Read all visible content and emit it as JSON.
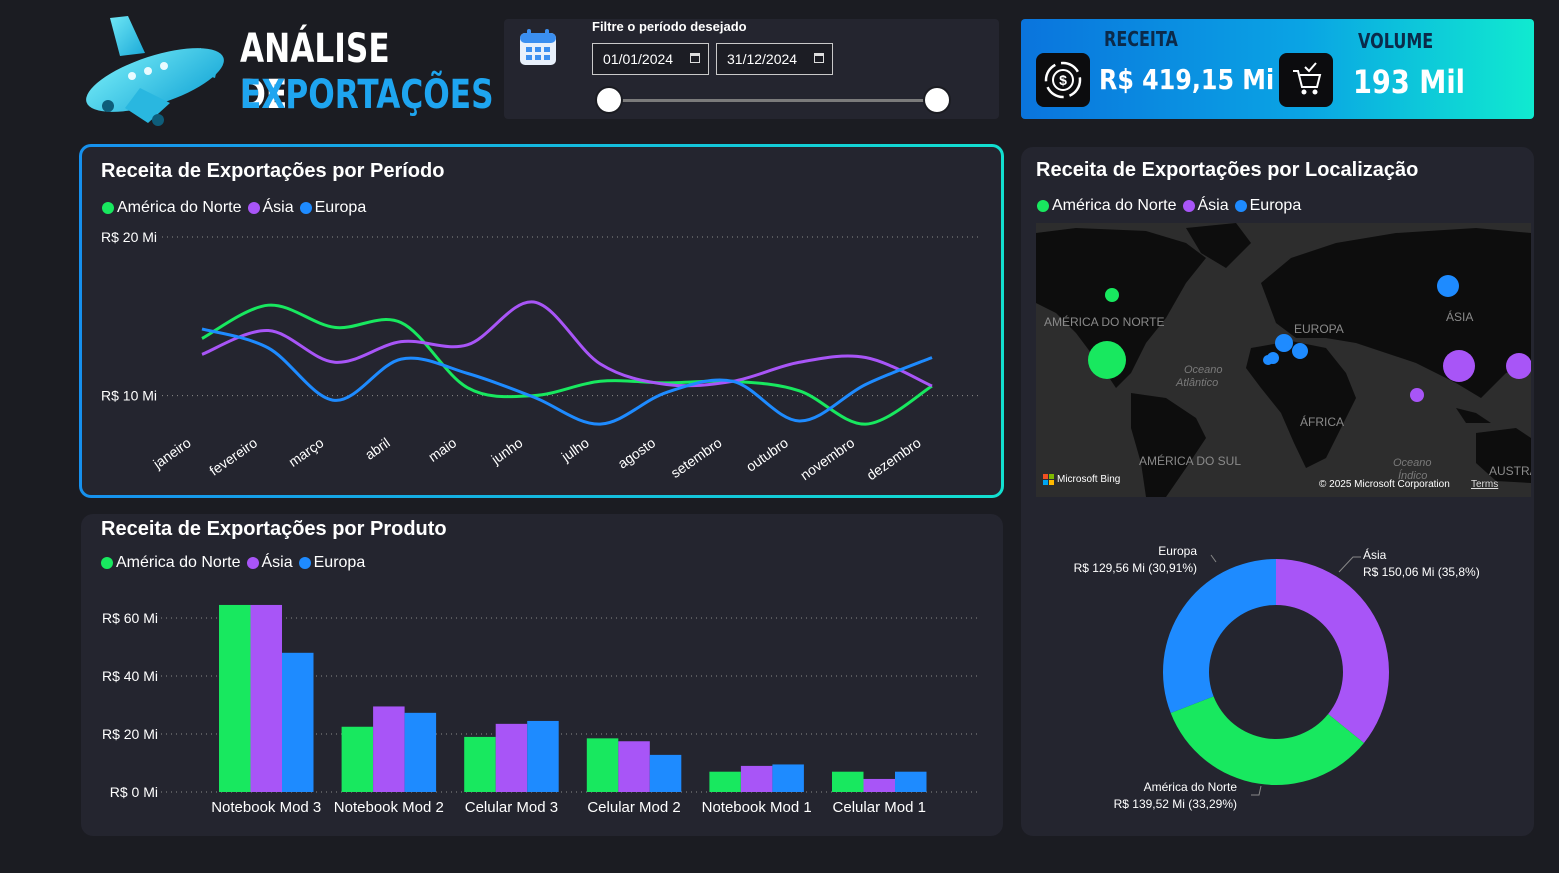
{
  "header": {
    "title_line1": "ANÁLISE DE",
    "title_line2": "EXPORTAÇÕES",
    "plane_icon": "airplane-icon"
  },
  "filter": {
    "label": "Filtre o período desejado",
    "start_date": "01/01/2024",
    "end_date": "31/12/2024",
    "calendar_icon": "calendar-icon",
    "slider_range": [
      0,
      1
    ]
  },
  "kpis": {
    "receita_label": "RECEITA",
    "receita_value": "R$ 419,15 Mi",
    "volume_label": "VOLUME",
    "volume_value": "193 Mil",
    "receita_icon": "money-cycle-icon",
    "volume_icon": "cart-check-icon"
  },
  "colors": {
    "america": "#18e85f",
    "asia": "#a855f7",
    "europa": "#1e8bff",
    "accent_start": "#0a78e0",
    "accent_end": "#10e8cf"
  },
  "legend": [
    {
      "name": "América do Norte",
      "color": "#18e85f"
    },
    {
      "name": "Ásia",
      "color": "#a855f7"
    },
    {
      "name": "Europa",
      "color": "#1e8bff"
    }
  ],
  "chart_data": [
    {
      "type": "line",
      "title": "Receita de Exportações por Período",
      "categories": [
        "janeiro",
        "fevereiro",
        "março",
        "abril",
        "maio",
        "junho",
        "julho",
        "agosto",
        "setembro",
        "outubro",
        "novembro",
        "dezembro"
      ],
      "ytick_labels": [
        "R$ 10 Mi",
        "R$ 20 Mi"
      ],
      "yticks": [
        10,
        20
      ],
      "ylim": [
        6,
        20
      ],
      "grid": true,
      "legend_position": "top-left",
      "series": [
        {
          "name": "América do Norte",
          "values": [
            13.6,
            15.7,
            14.3,
            14.6,
            10.5,
            10.0,
            10.9,
            10.8,
            10.9,
            10.3,
            8.2,
            10.6
          ]
        },
        {
          "name": "Ásia",
          "values": [
            12.6,
            14.1,
            12.1,
            13.4,
            13.2,
            15.9,
            12.0,
            10.7,
            10.9,
            12.1,
            12.4,
            10.6
          ]
        },
        {
          "name": "Europa",
          "values": [
            14.2,
            13.0,
            9.7,
            12.3,
            11.4,
            9.9,
            8.2,
            10.2,
            10.9,
            8.4,
            10.7,
            12.4
          ]
        }
      ]
    },
    {
      "type": "bar",
      "title": "Receita de Exportações por Produto",
      "categories": [
        "Notebook Mod 3",
        "Notebook Mod 2",
        "Celular Mod 3",
        "Celular Mod 2",
        "Notebook Mod 1",
        "Celular Mod 1"
      ],
      "ytick_labels": [
        "R$ 0 Mi",
        "R$ 20 Mi",
        "R$ 40 Mi",
        "R$ 60 Mi"
      ],
      "yticks": [
        0,
        20,
        40,
        60
      ],
      "ylim": [
        0,
        60
      ],
      "grid": true,
      "legend_position": "top-left",
      "series": [
        {
          "name": "América do Norte",
          "values": [
            64.5,
            22.5,
            19.0,
            18.5,
            7.0,
            7.0
          ]
        },
        {
          "name": "Ásia",
          "values": [
            64.5,
            29.5,
            23.5,
            17.5,
            9.0,
            4.5
          ]
        },
        {
          "name": "Europa",
          "values": [
            48.0,
            27.3,
            24.5,
            12.8,
            9.5,
            7.0
          ]
        }
      ]
    },
    {
      "type": "pie",
      "title": "Receita de Exportações por Localização",
      "donut": true,
      "slices": [
        {
          "name": "Ásia",
          "value": 150.06,
          "label": "Ásia",
          "value_label": "R$ 150,06 Mi (35,8%)"
        },
        {
          "name": "América do Norte",
          "value": 139.52,
          "label": "América do Norte",
          "value_label": "R$ 139,52 Mi (33,29%)"
        },
        {
          "name": "Europa",
          "value": 129.56,
          "label": "Europa",
          "value_label": "R$ 129,56 Mi (30,91%)"
        }
      ]
    }
  ],
  "map": {
    "title": "Receita de Exportações por Localização",
    "labels": {
      "america_norte": "AMÉRICA DO NORTE",
      "europa": "EUROPA",
      "asia": "ÁSIA",
      "africa": "ÁFRICA",
      "america_sul": "AMÉRICA DO SUL",
      "oceano_atlantico_1": "Oceano",
      "oceano_atlantico_2": "Atlântico",
      "oceano_indico_1": "Oceano",
      "oceano_indico_2": "Índico",
      "australia": "AUSTRÁ"
    },
    "bing": "Microsoft Bing",
    "copyright": "© 2025 Microsoft Corporation",
    "terms": "Terms"
  }
}
